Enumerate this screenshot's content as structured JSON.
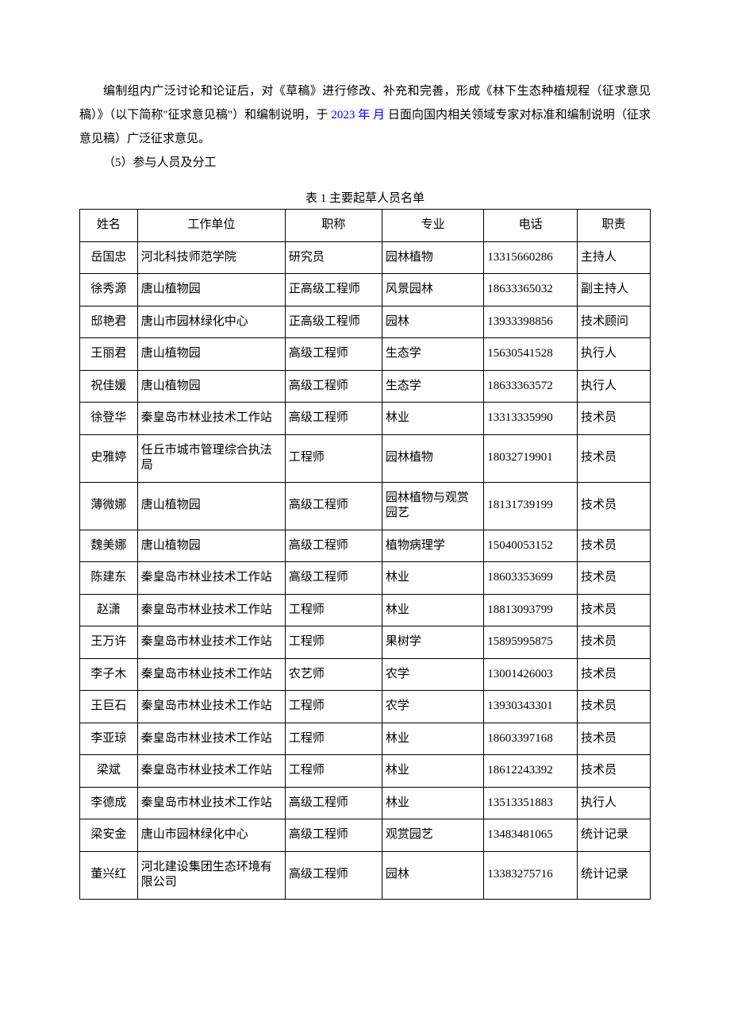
{
  "para1_a": "编制组内广泛讨论和论证后，对《草稿》进行修改、补充和完善，形成《林下生态种植规程（征求意见稿）》（以下简称\"征求意见稿\"）和编制说明，于 ",
  "para1_blue": "2023 年 月",
  "para1_b": " 日面向国内相关领域专家对标准和编制说明（征求意见稿）广泛征求意见。",
  "para2": "（5）参与人员及分工",
  "table_caption": "表 1 主要起草人员名单",
  "columns": [
    "姓名",
    "工作单位",
    "职称",
    "专业",
    "电话",
    "职责"
  ],
  "rows": [
    [
      "岳国忠",
      "河北科技师范学院",
      "研究员",
      "园林植物",
      "13315660286",
      "主持人"
    ],
    [
      "徐秀源",
      "唐山植物园",
      "正高级工程师",
      "风景园林",
      "18633365032",
      "副主持人"
    ],
    [
      "邸艳君",
      "唐山市园林绿化中心",
      "正高级工程师",
      "园林",
      "13933398856",
      "技术顾问"
    ],
    [
      "王丽君",
      "唐山植物园",
      "高级工程师",
      "生态学",
      "15630541528",
      "执行人"
    ],
    [
      "祝佳媛",
      "唐山植物园",
      "高级工程师",
      "生态学",
      "18633363572",
      "执行人"
    ],
    [
      "徐登华",
      "秦皇岛市林业技术工作站",
      "高级工程师",
      "林业",
      "13313335990",
      "技术员"
    ],
    [
      "史雅婷",
      "任丘市城市管理综合执法局",
      "工程师",
      "园林植物",
      "18032719901",
      "技术员"
    ],
    [
      "薄微娜",
      "唐山植物园",
      "高级工程师",
      "园林植物与观赏园艺",
      "18131739199",
      "技术员"
    ],
    [
      "魏美娜",
      "唐山植物园",
      "高级工程师",
      "植物病理学",
      "15040053152",
      "技术员"
    ],
    [
      "陈建东",
      "秦皇岛市林业技术工作站",
      "高级工程师",
      "林业",
      "18603353699",
      "技术员"
    ],
    [
      "赵潇",
      "秦皇岛市林业技术工作站",
      "工程师",
      "林业",
      "18813093799",
      "技术员"
    ],
    [
      "王万许",
      "秦皇岛市林业技术工作站",
      "工程师",
      "果树学",
      "15895995875",
      "技术员"
    ],
    [
      "李子木",
      "秦皇岛市林业技术工作站",
      "农艺师",
      "农学",
      "13001426003",
      "技术员"
    ],
    [
      "王巨石",
      "秦皇岛市林业技术工作站",
      "工程师",
      "农学",
      "13930343301",
      "技术员"
    ],
    [
      "李亚琼",
      "秦皇岛市林业技术工作站",
      "工程师",
      "林业",
      "18603397168",
      "技术员"
    ],
    [
      "梁斌",
      "秦皇岛市林业技术工作站",
      "工程师",
      "林业",
      "18612243392",
      "技术员"
    ],
    [
      "李德成",
      "秦皇岛市林业技术工作站",
      "高级工程师",
      "林业",
      "13513351883",
      "执行人"
    ],
    [
      "梁安金",
      "唐山市园林绿化中心",
      "高级工程师",
      "观赏园艺",
      "13483481065",
      "统计记录"
    ],
    [
      "董兴红",
      "河北建设集团生态环境有限公司",
      "高级工程师",
      "园林",
      "13383275716",
      "统计记录"
    ]
  ]
}
